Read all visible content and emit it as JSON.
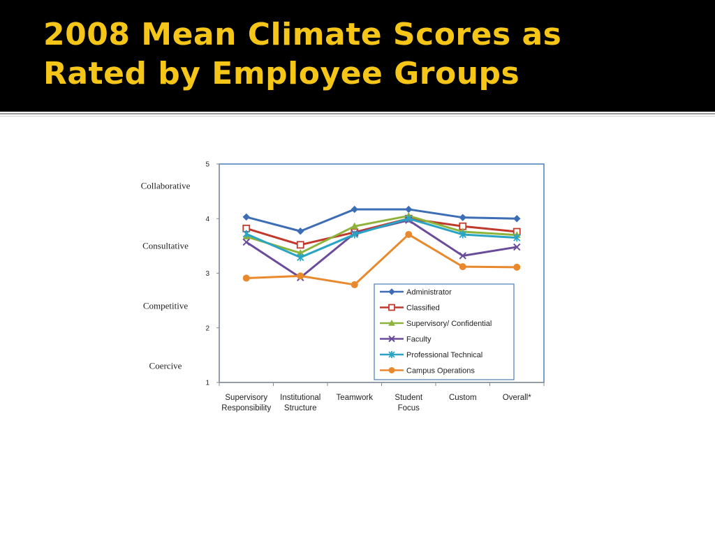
{
  "slide": {
    "title_line1": "2008 Mean Climate Scores as",
    "title_line2": "Rated by Employee Groups",
    "title_color": "#f5c518",
    "background_title": "#000000"
  },
  "chart_data": {
    "type": "line",
    "categories": [
      [
        "Supervisory",
        "Responsibility"
      ],
      [
        "Institutional",
        "Structure"
      ],
      [
        "Teamwork"
      ],
      [
        "Student",
        "Focus"
      ],
      [
        "Custom"
      ],
      [
        "Overall*"
      ]
    ],
    "ylim": [
      1,
      5
    ],
    "y_ticks": [
      "1",
      "2",
      "3",
      "4",
      "5"
    ],
    "side_labels": [
      {
        "text": "Collaborative",
        "y": 4.6
      },
      {
        "text": "Consultative",
        "y": 3.5
      },
      {
        "text": "Competitive",
        "y": 2.4
      },
      {
        "text": "Coercive",
        "y": 1.3
      }
    ],
    "legend_position": "lower-right",
    "series": [
      {
        "name": "Administrator",
        "color": "#3c6db5",
        "marker": "diamond",
        "values": [
          4.03,
          3.77,
          4.17,
          4.17,
          4.02,
          4.0
        ]
      },
      {
        "name": "Classified",
        "color": "#c0392b",
        "marker": "square",
        "values": [
          3.82,
          3.52,
          3.75,
          4.0,
          3.86,
          3.76
        ]
      },
      {
        "name": "Supervisory/ Confidential",
        "color": "#8db33a",
        "marker": "triangle",
        "values": [
          3.67,
          3.37,
          3.86,
          4.05,
          3.76,
          3.7
        ]
      },
      {
        "name": "Faculty",
        "color": "#6b4c9a",
        "marker": "x",
        "values": [
          3.57,
          2.92,
          3.73,
          3.97,
          3.32,
          3.48
        ]
      },
      {
        "name": "Professional Technical",
        "color": "#2aa4c4",
        "marker": "star",
        "values": [
          3.72,
          3.29,
          3.71,
          4.0,
          3.71,
          3.65
        ]
      },
      {
        "name": "Campus Operations",
        "color": "#e8892e",
        "marker": "circle",
        "values": [
          2.91,
          2.95,
          2.79,
          3.71,
          3.12,
          3.11
        ]
      }
    ]
  }
}
